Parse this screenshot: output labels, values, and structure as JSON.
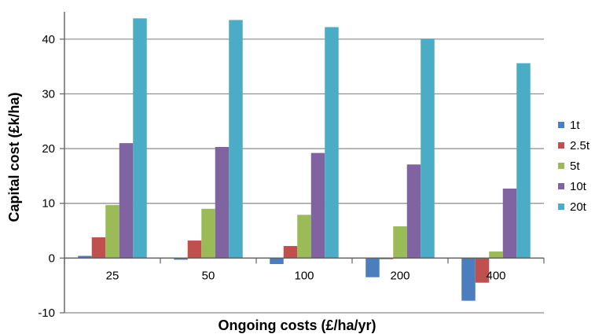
{
  "chart_data": {
    "type": "bar",
    "xlabel": "Ongoing costs (£/ha/yr)",
    "ylabel": "Capital cost (£k/ha)",
    "categories": [
      "25",
      "50",
      "100",
      "200",
      "400"
    ],
    "ylim": [
      -10,
      45
    ],
    "yticks": [
      -10,
      0,
      10,
      20,
      30,
      40
    ],
    "ytick_labels": [
      "-10",
      "0",
      "10",
      "20",
      "30",
      "40"
    ],
    "grid": true,
    "legend_position": "right",
    "series": [
      {
        "name": "1t",
        "color": "#4a7ebf",
        "values": [
          0.4,
          -0.3,
          -1.1,
          -3.5,
          -7.8
        ]
      },
      {
        "name": "2.5t",
        "color": "#c0504d",
        "values": [
          3.8,
          3.2,
          2.2,
          -0.2,
          -4.5
        ]
      },
      {
        "name": "5t",
        "color": "#9bbb59",
        "values": [
          9.7,
          9.0,
          7.9,
          5.8,
          1.2
        ]
      },
      {
        "name": "10t",
        "color": "#8064a2",
        "values": [
          21.0,
          20.3,
          19.2,
          17.1,
          12.7
        ]
      },
      {
        "name": "20t",
        "color": "#4bacc6",
        "values": [
          43.8,
          43.5,
          42.2,
          40.1,
          35.6
        ]
      }
    ]
  }
}
